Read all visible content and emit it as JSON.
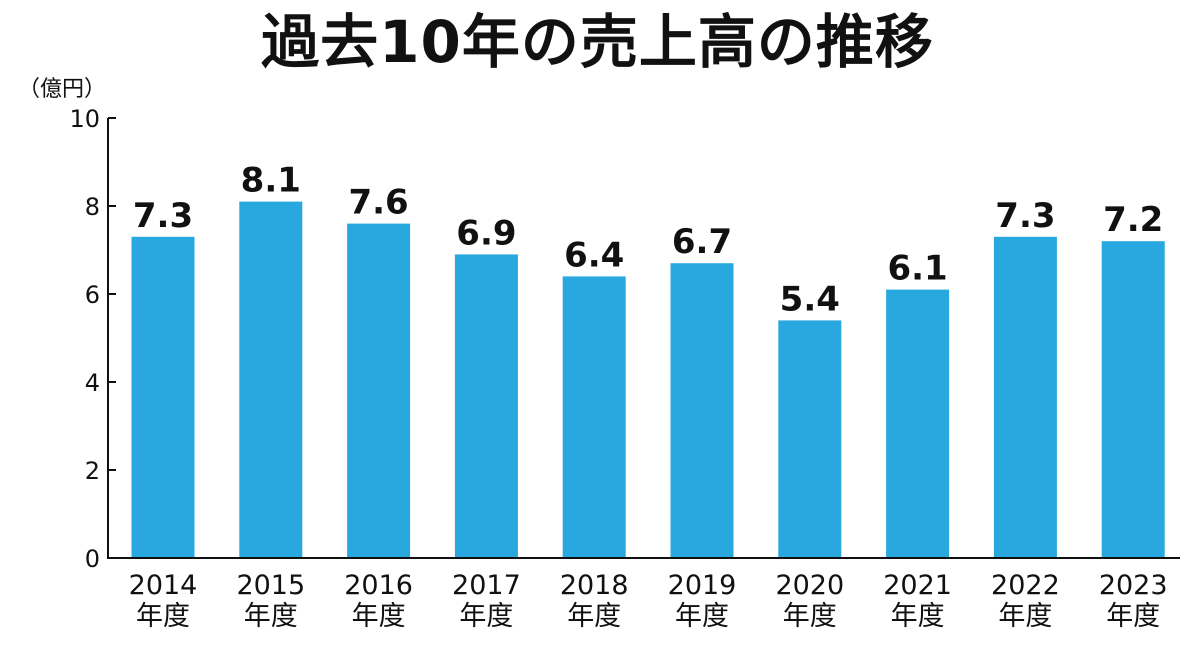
{
  "chart_data": {
    "type": "bar",
    "title": "過去10年の売上高の推移",
    "y_unit": "（億円）",
    "xlabel": "",
    "ylabel": "",
    "ylim": [
      0,
      10
    ],
    "yticks": [
      "0",
      "2",
      "4",
      "6",
      "8",
      "10"
    ],
    "grid": false,
    "legend": "none",
    "categories": [
      [
        "2014",
        "年度"
      ],
      [
        "2015",
        "年度"
      ],
      [
        "2016",
        "年度"
      ],
      [
        "2017",
        "年度"
      ],
      [
        "2018",
        "年度"
      ],
      [
        "2019",
        "年度"
      ],
      [
        "2020",
        "年度"
      ],
      [
        "2021",
        "年度"
      ],
      [
        "2022",
        "年度"
      ],
      [
        "2023",
        "年度"
      ]
    ],
    "values": [
      7.3,
      8.1,
      7.6,
      6.9,
      6.4,
      6.7,
      5.4,
      6.1,
      7.3,
      7.2
    ],
    "value_labels": [
      "7.3",
      "8.1",
      "7.6",
      "6.9",
      "6.4",
      "6.7",
      "5.4",
      "6.1",
      "7.3",
      "7.2"
    ],
    "bar_color": "#29a8df",
    "axis_color": "#111111"
  }
}
